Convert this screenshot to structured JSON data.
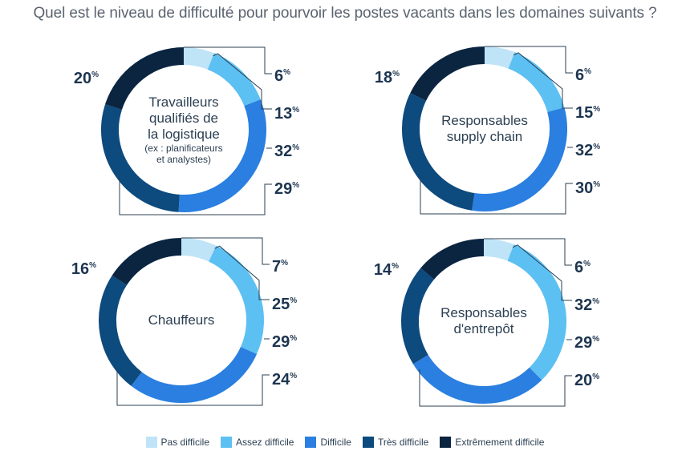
{
  "title": "Quel est le niveau de difficulté pour pourvoir les postes vacants dans les domaines suivants ?",
  "colors": {
    "Pas difficile": "#bfe4f7",
    "Assez difficile": "#5dc0f2",
    "Difficile": "#2a7fe0",
    "Très difficile": "#0d4a7e",
    "Extrêmement difficile": "#0b2541"
  },
  "chart_data": [
    {
      "type": "donut",
      "label_lines": [
        "Travailleurs",
        "qualifiés de",
        "la logistique"
      ],
      "sub_lines": [
        "(ex : planificateurs",
        "et analystes)"
      ],
      "categories": [
        "Pas difficile",
        "Assez difficile",
        "Difficile",
        "Très difficile",
        "Extrêmement difficile"
      ],
      "values": [
        6,
        13,
        32,
        29,
        20
      ],
      "value_labels": [
        "6",
        "13",
        "32",
        "29",
        "20"
      ]
    },
    {
      "type": "donut",
      "label_lines": [
        "Responsables",
        "supply chain"
      ],
      "sub_lines": [],
      "categories": [
        "Pas difficile",
        "Assez difficile",
        "Difficile",
        "Très difficile",
        "Extrêmement difficile"
      ],
      "values": [
        6,
        15,
        32,
        30,
        18
      ],
      "value_labels": [
        "6",
        "15",
        "32",
        "30",
        "18"
      ]
    },
    {
      "type": "donut",
      "label_lines": [
        "Chauffeurs"
      ],
      "sub_lines": [],
      "categories": [
        "Pas difficile",
        "Assez difficile",
        "Difficile",
        "Très difficile",
        "Extrêmement difficile"
      ],
      "values": [
        7,
        25,
        29,
        24,
        16
      ],
      "value_labels": [
        "7",
        "25",
        "29",
        "24",
        "16"
      ]
    },
    {
      "type": "donut",
      "label_lines": [
        "Responsables",
        "d'entrepôt"
      ],
      "sub_lines": [],
      "categories": [
        "Pas difficile",
        "Assez difficile",
        "Difficile",
        "Très difficile",
        "Extrêmement difficile"
      ],
      "values": [
        6,
        32,
        29,
        20,
        14
      ],
      "value_labels": [
        "6",
        "32",
        "29",
        "20",
        "14"
      ]
    }
  ],
  "percent_sign": "%",
  "legend": [
    "Pas difficile",
    "Assez difficile",
    "Difficile",
    "Très difficile",
    "Extrêmement difficile"
  ]
}
